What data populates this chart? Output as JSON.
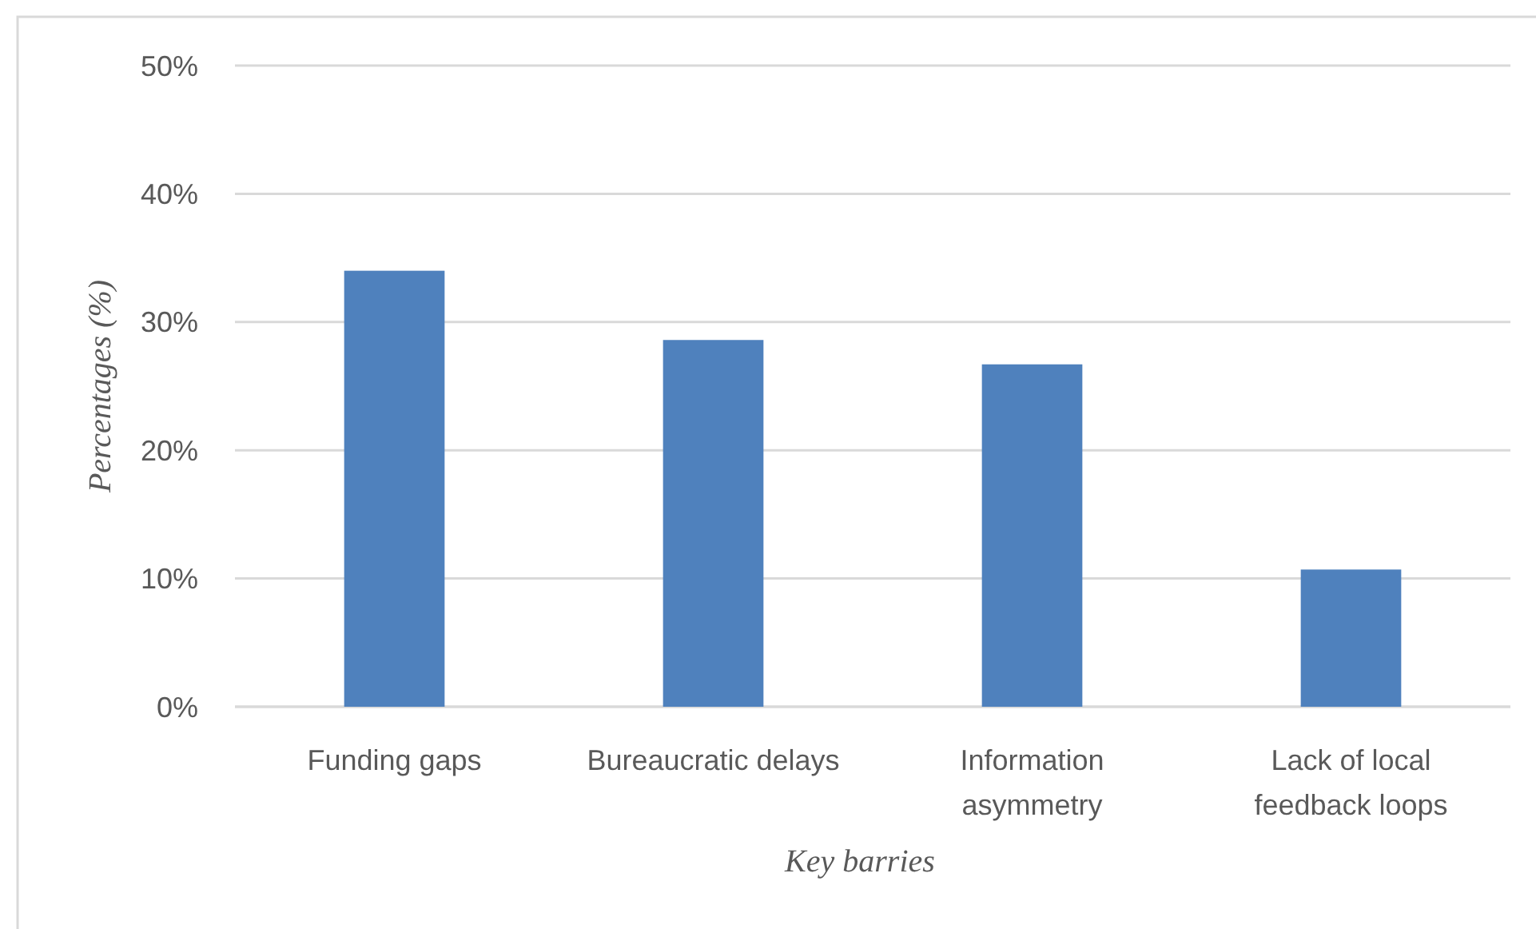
{
  "chart_data": {
    "type": "bar",
    "xlabel": "Key barries",
    "ylabel": "Percentages (%)",
    "categories": [
      "Funding gaps",
      "Bureaucratic delays",
      "Information asymmetry",
      "Lack of local feedback loops"
    ],
    "values": [
      34.0,
      28.6,
      26.7,
      10.7
    ],
    "color": "#4f81bd",
    "ylim": [
      0,
      50
    ],
    "yticks": [
      {
        "value": 0,
        "label": "0%"
      },
      {
        "value": 10,
        "label": "10%"
      },
      {
        "value": 20,
        "label": "20%"
      },
      {
        "value": 30,
        "label": "30%"
      },
      {
        "value": 40,
        "label": "40%"
      },
      {
        "value": 50,
        "label": "50%"
      }
    ],
    "grid": "y"
  }
}
